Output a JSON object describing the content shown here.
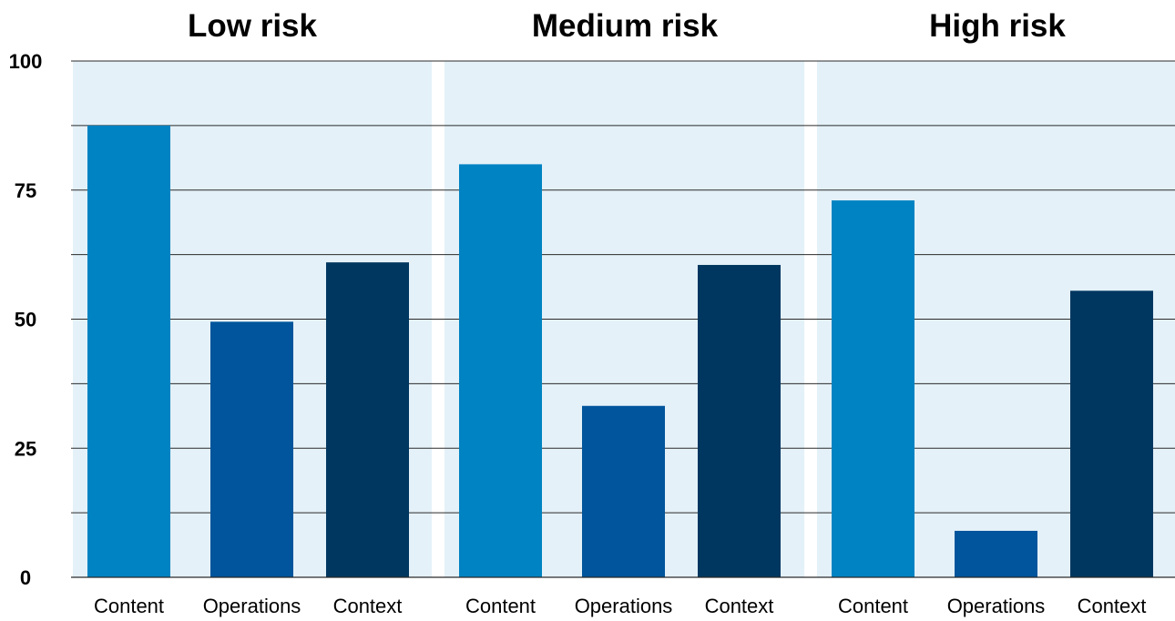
{
  "chart_data": {
    "type": "bar",
    "ylim": [
      0,
      100
    ],
    "y_ticks": [
      "100",
      "75",
      "50",
      "25",
      "0"
    ],
    "y_tick_values": [
      100,
      75,
      50,
      25,
      0
    ],
    "grid": true,
    "panel_background": "#e4f1f8",
    "grid_color": "#2b2b2b",
    "categories": [
      "Content",
      "Operations",
      "Context"
    ],
    "category_colors": [
      "#0083c2",
      "#00559c",
      "#003760"
    ],
    "panels": [
      {
        "title": "Low risk",
        "values": [
          87.5,
          49.5,
          61
        ]
      },
      {
        "title": "Medium risk",
        "values": [
          80,
          33.2,
          60.5
        ]
      },
      {
        "title": "High risk",
        "values": [
          73,
          9,
          55.5
        ]
      }
    ]
  }
}
